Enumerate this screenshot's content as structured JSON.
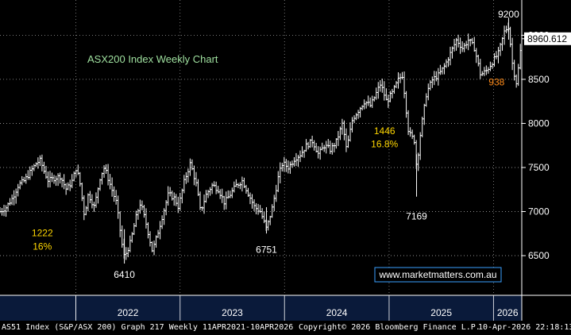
{
  "chart_data": {
    "type": "line",
    "style": "ohlc-weekly-bars",
    "title": "ASX200 Index Weekly Chart",
    "xlabel": "",
    "ylabel": "",
    "x_range": [
      "2021-04-11",
      "2026-04-10"
    ],
    "ylim": [
      6050,
      9400
    ],
    "y_ticks": [
      "6500",
      "7000",
      "7500",
      "8000",
      "8500",
      "9000"
    ],
    "x_ticks": [
      "2022",
      "2023",
      "2024",
      "2025",
      "2026"
    ],
    "grid": true,
    "last_value_label": "8960.612",
    "series": [
      {
        "values_by_date": [
          [
            "2021-04-12",
            7000
          ],
          [
            "2021-05-03",
            7050
          ],
          [
            "2021-05-24",
            7150
          ],
          [
            "2021-06-14",
            7300
          ],
          [
            "2021-07-05",
            7350
          ],
          [
            "2021-07-26",
            7450
          ],
          [
            "2021-08-16",
            7550
          ],
          [
            "2021-08-30",
            7580
          ],
          [
            "2021-09-13",
            7450
          ],
          [
            "2021-09-27",
            7350
          ],
          [
            "2021-10-18",
            7380
          ],
          [
            "2021-11-08",
            7400
          ],
          [
            "2021-11-29",
            7250
          ],
          [
            "2021-12-20",
            7350
          ],
          [
            "2022-01-03",
            7500
          ],
          [
            "2022-01-17",
            7300
          ],
          [
            "2022-01-31",
            6960
          ],
          [
            "2022-02-14",
            7200
          ],
          [
            "2022-03-07",
            7050
          ],
          [
            "2022-03-28",
            7400
          ],
          [
            "2022-04-11",
            7500
          ],
          [
            "2022-05-02",
            7300
          ],
          [
            "2022-05-23",
            7100
          ],
          [
            "2022-06-13",
            6600
          ],
          [
            "2022-06-20",
            6480
          ],
          [
            "2022-07-11",
            6650
          ],
          [
            "2022-08-01",
            6950
          ],
          [
            "2022-08-15",
            7100
          ],
          [
            "2022-09-05",
            6850
          ],
          [
            "2022-09-26",
            6550
          ],
          [
            "2022-10-10",
            6700
          ],
          [
            "2022-10-31",
            6950
          ],
          [
            "2022-11-21",
            7200
          ],
          [
            "2022-12-12",
            7150
          ],
          [
            "2022-12-26",
            7050
          ],
          [
            "2023-01-16",
            7350
          ],
          [
            "2023-02-06",
            7550
          ],
          [
            "2023-02-27",
            7300
          ],
          [
            "2023-03-13",
            7000
          ],
          [
            "2023-04-03",
            7200
          ],
          [
            "2023-04-24",
            7300
          ],
          [
            "2023-05-15",
            7250
          ],
          [
            "2023-06-05",
            7100
          ],
          [
            "2023-06-26",
            7200
          ],
          [
            "2023-07-17",
            7300
          ],
          [
            "2023-08-07",
            7350
          ],
          [
            "2023-08-28",
            7200
          ],
          [
            "2023-09-18",
            7050
          ],
          [
            "2023-10-09",
            7000
          ],
          [
            "2023-10-30",
            6800
          ],
          [
            "2023-11-20",
            7050
          ],
          [
            "2023-12-11",
            7400
          ],
          [
            "2023-12-25",
            7550
          ],
          [
            "2024-01-15",
            7500
          ],
          [
            "2024-02-05",
            7600
          ],
          [
            "2024-02-26",
            7650
          ],
          [
            "2024-03-18",
            7750
          ],
          [
            "2024-04-08",
            7800
          ],
          [
            "2024-04-29",
            7650
          ],
          [
            "2024-05-20",
            7750
          ],
          [
            "2024-06-10",
            7700
          ],
          [
            "2024-07-01",
            7800
          ],
          [
            "2024-07-22",
            8000
          ],
          [
            "2024-08-05",
            7700
          ],
          [
            "2024-08-26",
            8050
          ],
          [
            "2024-09-16",
            8150
          ],
          [
            "2024-10-07",
            8250
          ],
          [
            "2024-10-28",
            8200
          ],
          [
            "2024-11-18",
            8350
          ],
          [
            "2024-12-02",
            8450
          ],
          [
            "2024-12-23",
            8250
          ],
          [
            "2025-01-13",
            8350
          ],
          [
            "2025-02-03",
            8500
          ],
          [
            "2025-02-17",
            8550
          ],
          [
            "2025-03-10",
            7900
          ],
          [
            "2025-03-31",
            7800
          ],
          [
            "2025-04-07",
            7500
          ],
          [
            "2025-04-21",
            7900
          ],
          [
            "2025-05-12",
            8350
          ],
          [
            "2025-06-02",
            8500
          ],
          [
            "2025-06-23",
            8550
          ],
          [
            "2025-07-14",
            8650
          ],
          [
            "2025-08-04",
            8800
          ],
          [
            "2025-08-25",
            8950
          ],
          [
            "2025-09-15",
            8850
          ],
          [
            "2025-10-06",
            8950
          ],
          [
            "2025-10-27",
            8850
          ],
          [
            "2025-11-17",
            8550
          ],
          [
            "2025-12-08",
            8600
          ],
          [
            "2025-12-29",
            8700
          ],
          [
            "2026-01-19",
            8800
          ],
          [
            "2026-02-09",
            9050
          ],
          [
            "2026-02-23",
            9100
          ],
          [
            "2026-03-09",
            8650
          ],
          [
            "2026-03-23",
            8450
          ],
          [
            "2026-04-10",
            8960
          ]
        ]
      }
    ],
    "annotations": [
      {
        "text": "9200",
        "x": "2026-02-23",
        "y": 9200,
        "color": "#ffffff"
      },
      {
        "text": "938",
        "x": "2026-01-12",
        "y": 8430,
        "color": "#ff8c1a"
      },
      {
        "text": "1446",
        "x": "2024-12-16",
        "y": 7880,
        "color": "#ffd700"
      },
      {
        "text": "16.8%",
        "x": "2024-12-16",
        "y": 7730,
        "color": "#ffd700"
      },
      {
        "text": "7169",
        "x": "2025-04-07",
        "y": 6910,
        "color": "#ffffff"
      },
      {
        "text": "6751",
        "x": "2023-10-30",
        "y": 6530,
        "color": "#ffffff"
      },
      {
        "text": "6410",
        "x": "2022-06-20",
        "y": 6250,
        "color": "#ffffff"
      },
      {
        "text": "1222",
        "x": "2021-09-06",
        "y": 6720,
        "color": "#ffd700"
      },
      {
        "text": "16%",
        "x": "2021-09-06",
        "y": 6570,
        "color": "#ffd700"
      }
    ],
    "watermark": "www.marketmatters.com.au",
    "colors": {
      "background": "#000000",
      "bars": "#ffffff",
      "grid": "#bfbfbf",
      "title": "#9fe09f",
      "highlight": "#ffd700",
      "orange": "#ff8c1a",
      "watermark_border": "#3aa0ff",
      "axis_band": "#0a1a3a"
    }
  },
  "footer": {
    "left": "AS51 Index (S&P/ASX 200) Graph 217 Weekly 11APR2021-10APR2026",
    "center": "Copyright© 2026 Bloomberg Finance L.P.",
    "right": "10-Apr-2026 22:18:13"
  }
}
